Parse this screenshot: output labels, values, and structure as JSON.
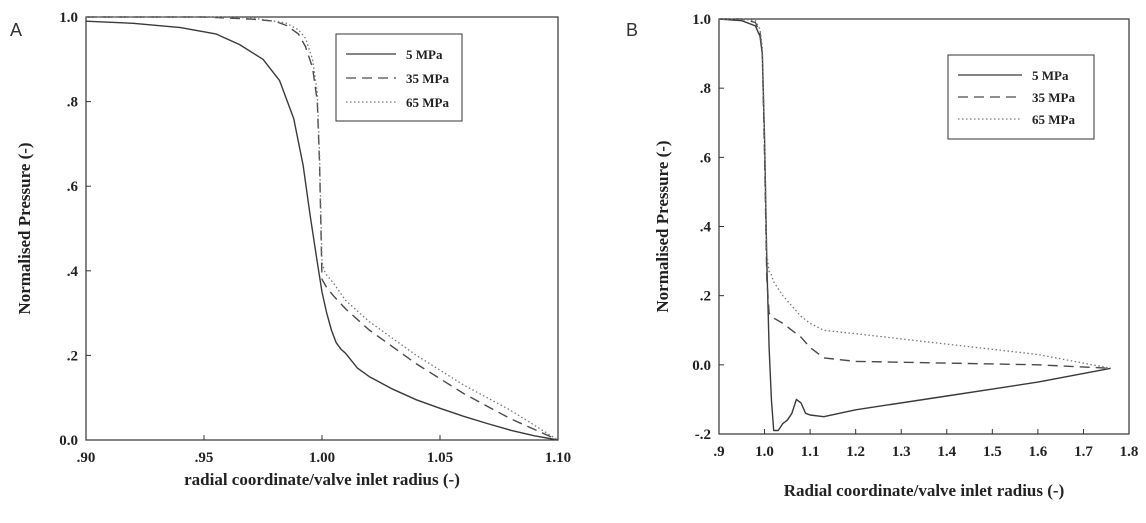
{
  "chart_data": [
    {
      "type": "line",
      "panel_label": "A",
      "xlabel": "radial coordinate/valve inlet radius (-)",
      "ylabel": "Normalised Pressure (-)",
      "xlim": [
        0.9,
        1.1
      ],
      "ylim": [
        0.0,
        1.0
      ],
      "xticks": [
        0.9,
        0.95,
        1.0,
        1.05,
        1.1
      ],
      "xtick_labels": [
        ".90",
        ".95",
        "1.00",
        "1.05",
        "1.10"
      ],
      "yticks": [
        0.0,
        0.2,
        0.4,
        0.6,
        0.8,
        1.0
      ],
      "ytick_labels": [
        "0.0",
        ".2",
        ".4",
        ".6",
        ".8",
        "1.0"
      ],
      "legend_position": "top-right",
      "series": [
        {
          "name": "5 MPa",
          "style": "solid",
          "x": [
            0.9,
            0.92,
            0.94,
            0.955,
            0.965,
            0.975,
            0.982,
            0.988,
            0.992,
            0.995,
            0.998,
            1.0,
            1.002,
            1.004,
            1.006,
            1.008,
            1.01,
            1.015,
            1.02,
            1.03,
            1.04,
            1.05,
            1.06,
            1.07,
            1.08,
            1.09,
            1.1
          ],
          "y": [
            0.99,
            0.985,
            0.975,
            0.96,
            0.935,
            0.9,
            0.85,
            0.76,
            0.65,
            0.53,
            0.42,
            0.35,
            0.3,
            0.26,
            0.23,
            0.215,
            0.205,
            0.17,
            0.15,
            0.12,
            0.095,
            0.075,
            0.056,
            0.039,
            0.023,
            0.01,
            0.0
          ]
        },
        {
          "name": "35 MPa",
          "style": "dashed",
          "x": [
            0.9,
            0.95,
            0.97,
            0.98,
            0.985,
            0.99,
            0.993,
            0.996,
            0.998,
            0.999,
            1.0,
            1.001,
            1.002,
            1.005,
            1.01,
            1.02,
            1.03,
            1.04,
            1.05,
            1.06,
            1.07,
            1.08,
            1.09,
            1.1
          ],
          "y": [
            1.0,
            1.0,
            0.995,
            0.99,
            0.98,
            0.96,
            0.93,
            0.88,
            0.8,
            0.65,
            0.38,
            0.37,
            0.36,
            0.34,
            0.31,
            0.26,
            0.22,
            0.18,
            0.145,
            0.11,
            0.08,
            0.05,
            0.025,
            0.0
          ]
        },
        {
          "name": "65 MPa",
          "style": "dotted",
          "x": [
            0.9,
            0.95,
            0.97,
            0.98,
            0.985,
            0.99,
            0.993,
            0.996,
            0.998,
            0.999,
            1.0,
            1.001,
            1.002,
            1.005,
            1.01,
            1.02,
            1.03,
            1.04,
            1.05,
            1.06,
            1.07,
            1.08,
            1.09,
            1.1
          ],
          "y": [
            1.0,
            1.0,
            0.998,
            0.99,
            0.985,
            0.97,
            0.95,
            0.9,
            0.82,
            0.67,
            0.42,
            0.4,
            0.39,
            0.37,
            0.33,
            0.28,
            0.24,
            0.2,
            0.165,
            0.13,
            0.1,
            0.07,
            0.035,
            0.0
          ]
        }
      ]
    },
    {
      "type": "line",
      "panel_label": "B",
      "xlabel": "Radial coordinate/valve inlet radius (-)",
      "ylabel": "Normalised Pressure (-)",
      "xlim": [
        0.9,
        1.8
      ],
      "ylim": [
        -0.2,
        1.0
      ],
      "xticks": [
        0.9,
        1.0,
        1.1,
        1.2,
        1.3,
        1.4,
        1.5,
        1.6,
        1.7,
        1.8
      ],
      "xtick_labels": [
        ".9",
        "1.0",
        "1.1",
        "1.2",
        "1.3",
        "1.4",
        "1.5",
        "1.6",
        "1.7",
        "1.8"
      ],
      "yticks": [
        -0.2,
        0.0,
        0.2,
        0.4,
        0.6,
        0.8,
        1.0
      ],
      "ytick_labels": [
        "-.2",
        "0.0",
        ".2",
        ".4",
        ".6",
        ".8",
        "1.0"
      ],
      "legend_position": "top-right",
      "series": [
        {
          "name": "5 MPa",
          "style": "solid",
          "x": [
            0.9,
            0.95,
            0.98,
            0.99,
            0.995,
            1.0,
            1.005,
            1.01,
            1.015,
            1.02,
            1.03,
            1.04,
            1.05,
            1.06,
            1.07,
            1.08,
            1.09,
            1.1,
            1.13,
            1.2,
            1.4,
            1.6,
            1.76
          ],
          "y": [
            1.0,
            0.995,
            0.98,
            0.95,
            0.9,
            0.65,
            0.3,
            0.05,
            -0.1,
            -0.19,
            -0.19,
            -0.17,
            -0.16,
            -0.14,
            -0.1,
            -0.11,
            -0.14,
            -0.145,
            -0.15,
            -0.13,
            -0.09,
            -0.05,
            -0.01
          ]
        },
        {
          "name": "35 MPa",
          "style": "dashed",
          "x": [
            0.9,
            0.95,
            0.98,
            0.99,
            0.995,
            1.0,
            1.005,
            1.01,
            1.015,
            1.02,
            1.04,
            1.06,
            1.08,
            1.1,
            1.13,
            1.2,
            1.4,
            1.6,
            1.76
          ],
          "y": [
            1.0,
            1.0,
            0.99,
            0.96,
            0.9,
            0.6,
            0.25,
            0.15,
            0.14,
            0.135,
            0.12,
            0.1,
            0.08,
            0.05,
            0.02,
            0.01,
            0.005,
            0.0,
            -0.01
          ]
        },
        {
          "name": "65 MPa",
          "style": "dotted",
          "x": [
            0.9,
            0.95,
            0.98,
            0.99,
            0.995,
            1.0,
            1.005,
            1.01,
            1.015,
            1.02,
            1.04,
            1.06,
            1.08,
            1.1,
            1.13,
            1.2,
            1.4,
            1.6,
            1.76
          ],
          "y": [
            1.0,
            1.0,
            0.995,
            0.97,
            0.92,
            0.65,
            0.32,
            0.27,
            0.26,
            0.24,
            0.2,
            0.17,
            0.14,
            0.12,
            0.1,
            0.09,
            0.06,
            0.03,
            -0.01
          ]
        }
      ]
    }
  ]
}
